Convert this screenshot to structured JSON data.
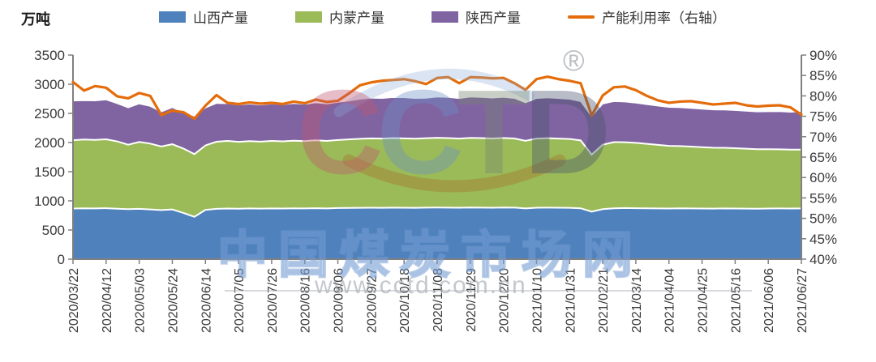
{
  "unit_label": "万吨",
  "legend": {
    "items": [
      {
        "key": "shanxi",
        "label": "山西产量",
        "color": "#4F81BD",
        "type": "area"
      },
      {
        "key": "neimeng",
        "label": "内蒙产量",
        "color": "#9BBB59",
        "type": "area"
      },
      {
        "key": "shaanxi",
        "label": "陕西产量",
        "color": "#8064A2",
        "type": "area"
      },
      {
        "key": "utilization",
        "label": "产能利用率（右轴）",
        "color": "#E46C0A",
        "type": "line"
      }
    ]
  },
  "watermark": {
    "logo_text": "CCTD",
    "logo_letter_colors": [
      "#c25570",
      "#6a8fc7",
      "#74846d",
      "#45526b"
    ],
    "registered": "®",
    "site_name": "中国煤炭市场网",
    "site_url": "www.cctd.com.cn"
  },
  "chart_data": {
    "type": "area",
    "stacked": true,
    "grid": false,
    "legend_position": "top",
    "x_label_every_n_points": 3,
    "x_tick_labels": [
      "2020/03/22",
      "2020/04/12",
      "2020/05/03",
      "2020/05/24",
      "2020/06/14",
      "2020/07/05",
      "2020/07/26",
      "2020/08/16",
      "2020/09/06",
      "2020/09/27",
      "2020/10/18",
      "2020/11/08",
      "2020/11/29",
      "2020/12/20",
      "2021/01/10",
      "2021/01/31",
      "2021/02/21",
      "2021/03/14",
      "2021/04/04",
      "2021/04/25",
      "2021/05/16",
      "2021/06/06",
      "2021/06/27"
    ],
    "left_axis": {
      "unit": "万吨",
      "min": 0,
      "max": 3500,
      "step": 500,
      "tick_labels": [
        "0",
        "500",
        "1000",
        "1500",
        "2000",
        "2500",
        "3000",
        "3500"
      ]
    },
    "right_axis": {
      "min": 40,
      "max": 90,
      "step": 5,
      "tick_labels": [
        "40%",
        "45%",
        "50%",
        "55%",
        "60%",
        "65%",
        "70%",
        "75%",
        "80%",
        "85%",
        "90%"
      ]
    },
    "series": [
      {
        "name": "山西产量",
        "key": "shanxi",
        "color": "#4F81BD",
        "values": [
          868,
          872,
          870,
          874,
          865,
          858,
          862,
          852,
          842,
          852,
          792,
          726,
          845,
          862,
          868,
          865,
          870,
          866,
          870,
          868,
          872,
          870,
          874,
          870,
          876,
          878,
          880,
          882,
          880,
          884,
          882,
          880,
          884,
          886,
          884,
          882,
          886,
          884,
          882,
          886,
          884,
          870,
          882,
          884,
          882,
          880,
          872,
          815,
          858,
          872,
          876,
          874,
          872,
          870,
          868,
          872,
          870,
          868,
          866,
          870,
          868,
          866,
          864,
          868,
          870,
          868,
          870
        ]
      },
      {
        "name": "内蒙产量",
        "key": "neimeng",
        "color": "#9BBB59",
        "values": [
          1172,
          1180,
          1175,
          1182,
          1155,
          1105,
          1148,
          1130,
          1090,
          1120,
          1105,
          1075,
          1105,
          1152,
          1160,
          1148,
          1155,
          1150,
          1158,
          1152,
          1160,
          1155,
          1165,
          1158,
          1168,
          1175,
          1185,
          1190,
          1188,
          1192,
          1190,
          1186,
          1190,
          1195,
          1192,
          1186,
          1194,
          1192,
          1188,
          1192,
          1185,
          1160,
          1185,
          1190,
          1185,
          1180,
          1165,
          978,
          1105,
          1135,
          1130,
          1120,
          1105,
          1090,
          1075,
          1068,
          1060,
          1052,
          1045,
          1040,
          1035,
          1028,
          1022,
          1018,
          1014,
          1010,
          1008
        ]
      },
      {
        "name": "陕西产量",
        "key": "shaanxi",
        "color": "#8064A2",
        "values": [
          675,
          668,
          672,
          678,
          650,
          635,
          655,
          640,
          595,
          630,
          618,
          652,
          645,
          658,
          640,
          632,
          638,
          630,
          636,
          630,
          640,
          634,
          645,
          636,
          648,
          660,
          680,
          692,
          690,
          698,
          700,
          692,
          688,
          702,
          700,
          688,
          702,
          700,
          695,
          700,
          690,
          655,
          690,
          695,
          690,
          685,
          668,
          655,
          700,
          698,
          692,
          685,
          675,
          668,
          662,
          660,
          658,
          655,
          652,
          650,
          648,
          645,
          642,
          645,
          648,
          645,
          655
        ]
      }
    ],
    "line": {
      "name": "产能利用率（右轴）",
      "key": "utilization",
      "color": "#E46C0A",
      "axis": "right",
      "values": [
        83.4,
        81.3,
        82.4,
        82.0,
        79.9,
        79.4,
        80.7,
        80.0,
        75.3,
        76.4,
        76.0,
        74.4,
        77.6,
        80.2,
        78.3,
        78.0,
        78.4,
        78.1,
        78.3,
        78.0,
        78.6,
        78.2,
        79.1,
        78.5,
        78.8,
        80.6,
        82.6,
        83.3,
        83.7,
        83.9,
        84.1,
        83.6,
        82.9,
        84.4,
        84.6,
        83.1,
        84.6,
        84.5,
        84.3,
        84.4,
        83.1,
        81.5,
        84.1,
        84.7,
        84.1,
        83.7,
        83.1,
        75.2,
        80.1,
        82.1,
        82.3,
        81.4,
        80.0,
        78.9,
        78.3,
        78.6,
        78.7,
        78.3,
        77.9,
        78.1,
        78.3,
        77.7,
        77.4,
        77.6,
        77.7,
        77.2,
        75.4
      ]
    }
  }
}
